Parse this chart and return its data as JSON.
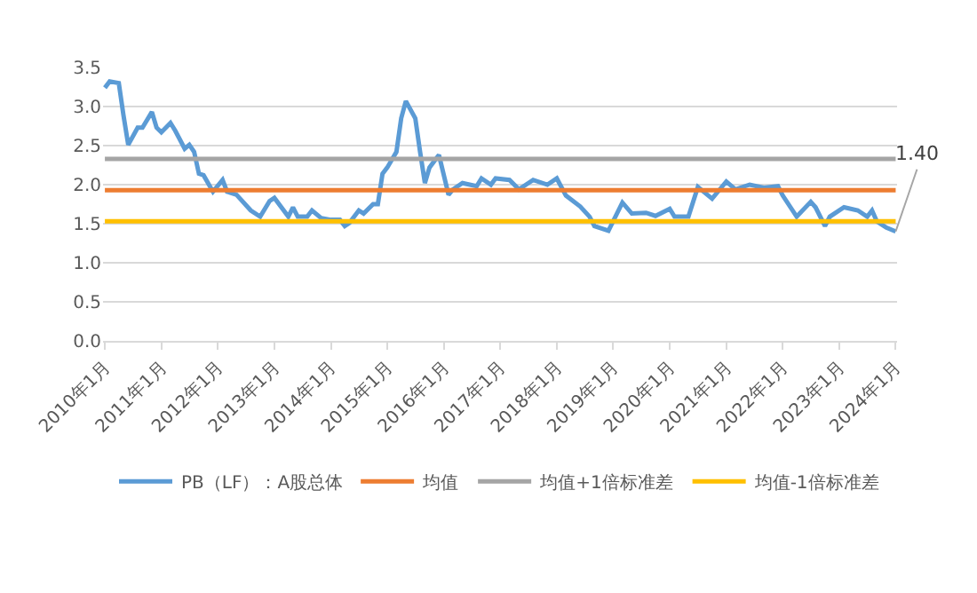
{
  "chart_data": {
    "type": "line",
    "xlim": [
      "2009-12-20",
      "2024-01-10"
    ],
    "xticks": [
      {
        "value": "2010-01",
        "label": "2010年1月"
      },
      {
        "value": "2011-01",
        "label": "2011年1月"
      },
      {
        "value": "2012-01",
        "label": "2012年1月"
      },
      {
        "value": "2013-01",
        "label": "2013年1月"
      },
      {
        "value": "2014-01",
        "label": "2014年1月"
      },
      {
        "value": "2015-01",
        "label": "2015年1月"
      },
      {
        "value": "2016-01",
        "label": "2016年1月"
      },
      {
        "value": "2017-01",
        "label": "2017年1月"
      },
      {
        "value": "2018-01",
        "label": "2018年1月"
      },
      {
        "value": "2019-01",
        "label": "2019年1月"
      },
      {
        "value": "2020-01",
        "label": "2020年1月"
      },
      {
        "value": "2021-01",
        "label": "2021年1月"
      },
      {
        "value": "2022-01",
        "label": "2022年1月"
      },
      {
        "value": "2023-01",
        "label": "2023年1月"
      },
      {
        "value": "2024-01",
        "label": "2024年1月"
      }
    ],
    "ylim": [
      0,
      3.5
    ],
    "yticks": [
      {
        "value": 0,
        "label": "0.0"
      },
      {
        "value": 0.5,
        "label": "0.5"
      },
      {
        "value": 1,
        "label": "1.0"
      },
      {
        "value": 1.5,
        "label": "1.5"
      },
      {
        "value": 2,
        "label": "2.0"
      },
      {
        "value": 2.5,
        "label": "2.5"
      },
      {
        "value": 3,
        "label": "3.0"
      },
      {
        "value": 3.5,
        "label": "3.5"
      }
    ],
    "grid": "y",
    "legend": "bottom",
    "marker": "none",
    "line_style": "solid",
    "annotations": [
      {
        "text": "1.40",
        "x": "2024-01",
        "y": 1.4
      }
    ],
    "series": [
      {
        "name": "PB（LF）：A股总体",
        "color": "#5b9bd5",
        "x": [
          "2010-01",
          "2010-02",
          "2010-04",
          "2010-05",
          "2010-06",
          "2010-08",
          "2010-09",
          "2010-11",
          "2010-12",
          "2011-01",
          "2011-03",
          "2011-04",
          "2011-06",
          "2011-07",
          "2011-08",
          "2011-09",
          "2011-10",
          "2011-12",
          "2012-02",
          "2012-03",
          "2012-05",
          "2012-08",
          "2012-10",
          "2012-12",
          "2013-01",
          "2013-04",
          "2013-05",
          "2013-06",
          "2013-08",
          "2013-09",
          "2013-11",
          "2014-01",
          "2014-03",
          "2014-04",
          "2014-05",
          "2014-07",
          "2014-08",
          "2014-10",
          "2014-11",
          "2014-12",
          "2015-01",
          "2015-03",
          "2015-04",
          "2015-05",
          "2015-07",
          "2015-08",
          "2015-09",
          "2015-10",
          "2015-12",
          "2016-02",
          "2016-03",
          "2016-05",
          "2016-08",
          "2016-09",
          "2016-11",
          "2016-12",
          "2017-03",
          "2017-05",
          "2017-08",
          "2017-11",
          "2018-01",
          "2018-03",
          "2018-06",
          "2018-08",
          "2018-09",
          "2018-12",
          "2019-03",
          "2019-05",
          "2019-08",
          "2019-10",
          "2020-01",
          "2020-02",
          "2020-05",
          "2020-07",
          "2020-10",
          "2021-01",
          "2021-03",
          "2021-06",
          "2021-09",
          "2021-12",
          "2022-01",
          "2022-04",
          "2022-07",
          "2022-08",
          "2022-10",
          "2022-11",
          "2023-02",
          "2023-05",
          "2023-07",
          "2023-08",
          "2023-09",
          "2023-11",
          "2024-01"
        ],
        "values": [
          3.24,
          3.32,
          3.3,
          2.89,
          2.51,
          2.73,
          2.73,
          2.93,
          2.73,
          2.67,
          2.79,
          2.69,
          2.46,
          2.51,
          2.42,
          2.14,
          2.12,
          1.91,
          2.06,
          1.91,
          1.87,
          1.67,
          1.59,
          1.79,
          1.83,
          1.59,
          1.71,
          1.59,
          1.59,
          1.67,
          1.57,
          1.55,
          1.55,
          1.47,
          1.51,
          1.67,
          1.63,
          1.75,
          1.75,
          2.14,
          2.22,
          2.42,
          2.85,
          3.07,
          2.85,
          2.42,
          2.02,
          2.22,
          2.38,
          1.87,
          1.94,
          2.02,
          1.98,
          2.08,
          2.0,
          2.08,
          2.06,
          1.94,
          2.06,
          2.0,
          2.08,
          1.86,
          1.72,
          1.59,
          1.47,
          1.41,
          1.77,
          1.63,
          1.64,
          1.6,
          1.69,
          1.59,
          1.59,
          1.97,
          1.82,
          2.04,
          1.94,
          2.0,
          1.96,
          1.98,
          1.86,
          1.59,
          1.78,
          1.71,
          1.47,
          1.59,
          1.71,
          1.67,
          1.59,
          1.67,
          1.53,
          1.45,
          1.4
        ]
      },
      {
        "name": "均值",
        "color": "#ed7d31",
        "x": [
          "2010-01",
          "2024-01"
        ],
        "values": [
          1.93,
          1.93
        ]
      },
      {
        "name": "均值+1倍标准差",
        "color": "#a5a5a5",
        "x": [
          "2010-01",
          "2024-01"
        ],
        "values": [
          2.33,
          2.33
        ]
      },
      {
        "name": "均值-1倍标准差",
        "color": "#ffc000",
        "x": [
          "2010-01",
          "2024-01"
        ],
        "values": [
          1.53,
          1.53
        ]
      }
    ]
  }
}
